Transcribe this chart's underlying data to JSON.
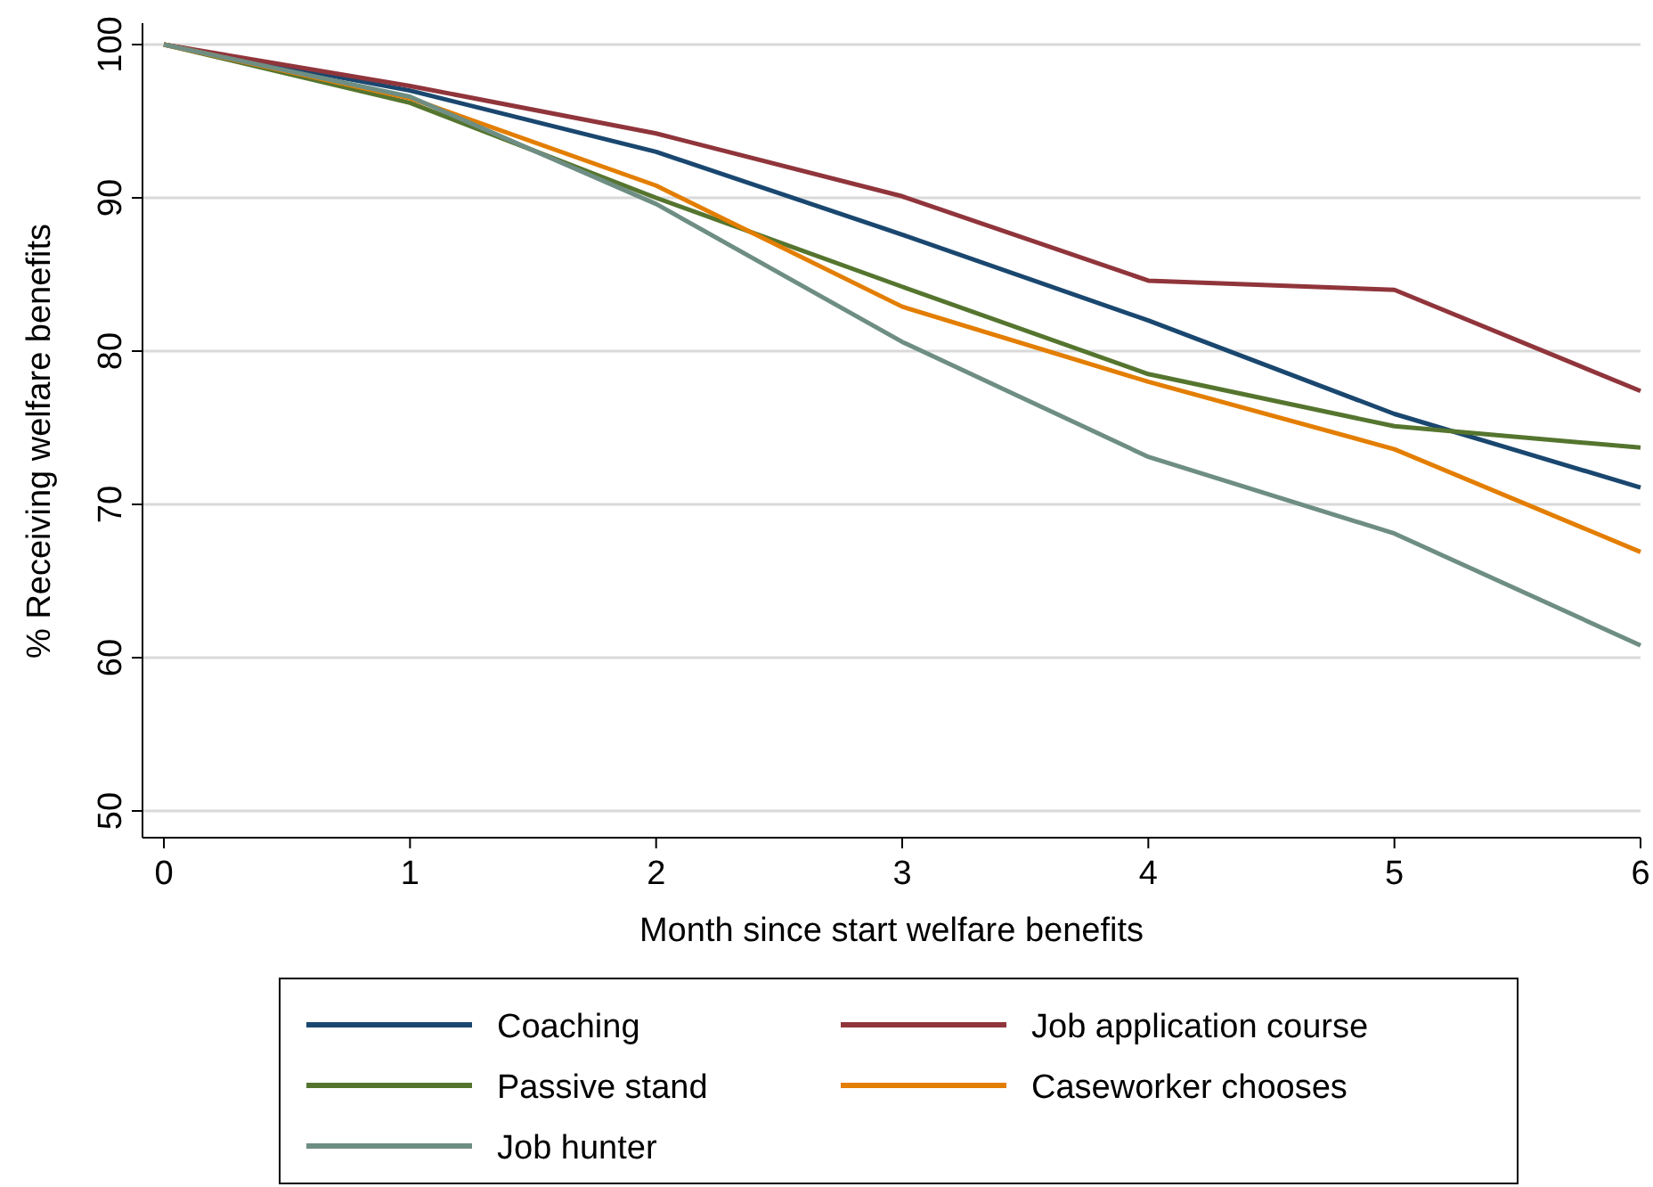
{
  "chart_data": {
    "type": "line",
    "xlabel": "Month since start welfare benefits",
    "ylabel": "% Receiving welfare benefits",
    "x": [
      0,
      1,
      2,
      3,
      4,
      5,
      6
    ],
    "xlim": [
      -0.087,
      6
    ],
    "xticks": [
      0,
      1,
      2,
      3,
      4,
      5,
      6
    ],
    "ylim": [
      50,
      100
    ],
    "yticks": [
      50,
      60,
      70,
      80,
      90,
      100
    ],
    "grid": "y",
    "legend": "bottom",
    "line_style": "solid",
    "marker": "none",
    "series": [
      {
        "name": "Coaching",
        "color": "#1a476f",
        "values": [
          100,
          97,
          93,
          87.6,
          82,
          75.9,
          71.1
        ]
      },
      {
        "name": "Job application course",
        "color": "#90353b",
        "values": [
          100,
          97.3,
          94.2,
          90.1,
          84.6,
          84,
          77.4
        ]
      },
      {
        "name": "Passive stand",
        "color": "#55752f",
        "values": [
          100,
          96.2,
          90,
          84.2,
          78.5,
          75.1,
          73.7
        ]
      },
      {
        "name": "Caseworker chooses",
        "color": "#e37e00",
        "values": [
          100,
          96.5,
          90.8,
          82.9,
          78,
          73.6,
          66.9
        ]
      },
      {
        "name": "Job hunter",
        "color": "#6e8e84",
        "values": [
          100,
          96.6,
          89.6,
          80.6,
          73.1,
          68.1,
          60.8
        ]
      }
    ]
  }
}
